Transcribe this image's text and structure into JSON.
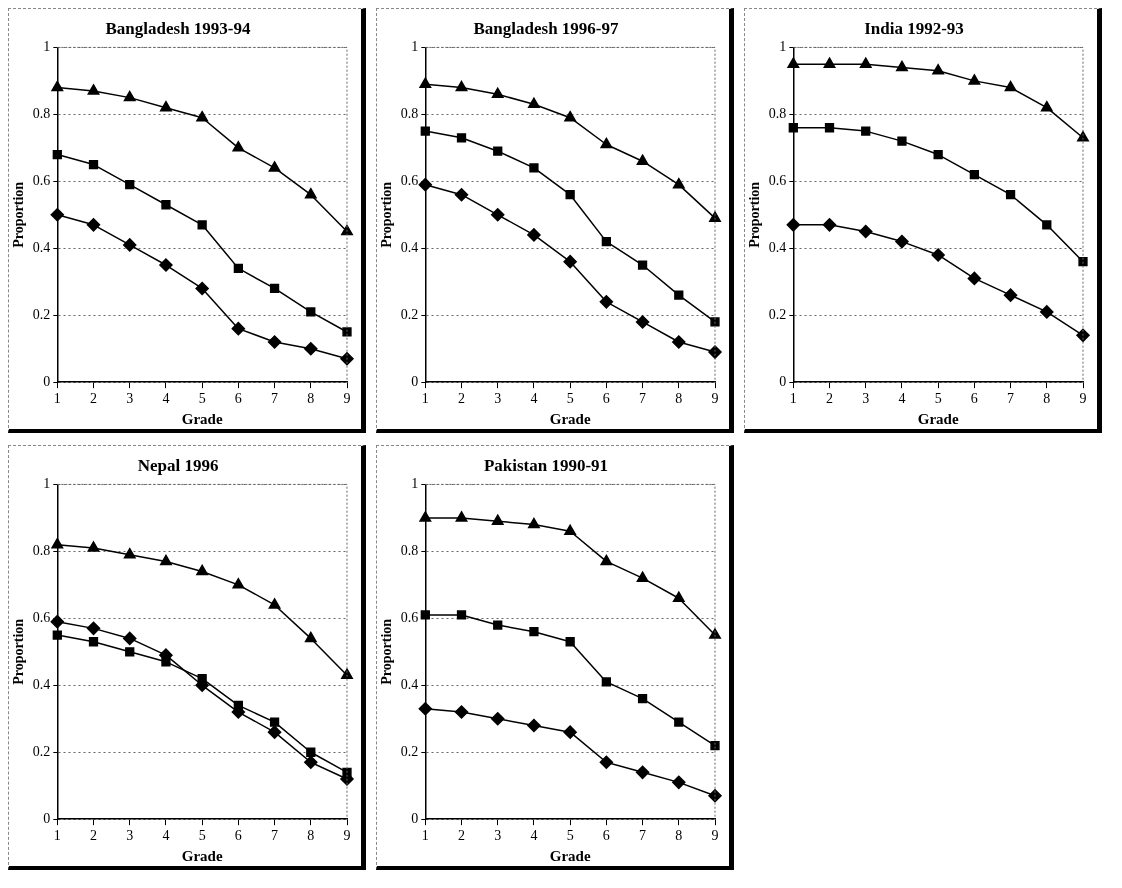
{
  "chart_data": [
    {
      "type": "line",
      "title": "Bangladesh 1993-94",
      "xlabel": "Grade",
      "ylabel": "Proportion",
      "x": [
        1,
        2,
        3,
        4,
        5,
        6,
        7,
        8,
        9
      ],
      "xlim": [
        1,
        9
      ],
      "xticks": [
        1,
        2,
        3,
        4,
        5,
        6,
        7,
        8,
        9
      ],
      "ylim": [
        0,
        1
      ],
      "yticks": [
        0,
        0.2,
        0.4,
        0.6,
        0.8,
        1
      ],
      "grid": "y",
      "series": [
        {
          "color": "#000000",
          "marker": "triangle",
          "values": [
            0.88,
            0.87,
            0.85,
            0.82,
            0.79,
            0.7,
            0.64,
            0.56,
            0.45
          ]
        },
        {
          "color": "#000000",
          "marker": "square",
          "values": [
            0.68,
            0.65,
            0.59,
            0.53,
            0.47,
            0.34,
            0.28,
            0.21,
            0.15
          ]
        },
        {
          "color": "#000000",
          "marker": "diamond",
          "values": [
            0.5,
            0.47,
            0.41,
            0.35,
            0.28,
            0.16,
            0.12,
            0.1,
            0.07
          ]
        }
      ]
    },
    {
      "type": "line",
      "title": "Bangladesh 1996-97",
      "xlabel": "Grade",
      "ylabel": "Proportion",
      "x": [
        1,
        2,
        3,
        4,
        5,
        6,
        7,
        8,
        9
      ],
      "xlim": [
        1,
        9
      ],
      "xticks": [
        1,
        2,
        3,
        4,
        5,
        6,
        7,
        8,
        9
      ],
      "ylim": [
        0,
        1
      ],
      "yticks": [
        0,
        0.2,
        0.4,
        0.6,
        0.8,
        1
      ],
      "grid": "y",
      "series": [
        {
          "color": "#000000",
          "marker": "triangle",
          "values": [
            0.89,
            0.88,
            0.86,
            0.83,
            0.79,
            0.71,
            0.66,
            0.59,
            0.49
          ]
        },
        {
          "color": "#000000",
          "marker": "square",
          "values": [
            0.75,
            0.73,
            0.69,
            0.64,
            0.56,
            0.42,
            0.35,
            0.26,
            0.18
          ]
        },
        {
          "color": "#000000",
          "marker": "diamond",
          "values": [
            0.59,
            0.56,
            0.5,
            0.44,
            0.36,
            0.24,
            0.18,
            0.12,
            0.09
          ]
        }
      ]
    },
    {
      "type": "line",
      "title": "India 1992-93",
      "xlabel": "Grade",
      "ylabel": "Proportion",
      "x": [
        1,
        2,
        3,
        4,
        5,
        6,
        7,
        8,
        9
      ],
      "xlim": [
        1,
        9
      ],
      "xticks": [
        1,
        2,
        3,
        4,
        5,
        6,
        7,
        8,
        9
      ],
      "ylim": [
        0,
        1
      ],
      "yticks": [
        0,
        0.2,
        0.4,
        0.6,
        0.8,
        1
      ],
      "grid": "y",
      "series": [
        {
          "color": "#000000",
          "marker": "triangle",
          "values": [
            0.95,
            0.95,
            0.95,
            0.94,
            0.93,
            0.9,
            0.88,
            0.82,
            0.73
          ]
        },
        {
          "color": "#000000",
          "marker": "square",
          "values": [
            0.76,
            0.76,
            0.75,
            0.72,
            0.68,
            0.62,
            0.56,
            0.47,
            0.36
          ]
        },
        {
          "color": "#000000",
          "marker": "diamond",
          "values": [
            0.47,
            0.47,
            0.45,
            0.42,
            0.38,
            0.31,
            0.26,
            0.21,
            0.14
          ]
        }
      ]
    },
    {
      "type": "line",
      "title": "Nepal 1996",
      "xlabel": "Grade",
      "ylabel": "Proportion",
      "x": [
        1,
        2,
        3,
        4,
        5,
        6,
        7,
        8,
        9
      ],
      "xlim": [
        1,
        9
      ],
      "xticks": [
        1,
        2,
        3,
        4,
        5,
        6,
        7,
        8,
        9
      ],
      "ylim": [
        0,
        1
      ],
      "yticks": [
        0,
        0.2,
        0.4,
        0.6,
        0.8,
        1
      ],
      "grid": "y",
      "series": [
        {
          "color": "#000000",
          "marker": "triangle",
          "values": [
            0.82,
            0.81,
            0.79,
            0.77,
            0.74,
            0.7,
            0.64,
            0.54,
            0.43
          ]
        },
        {
          "color": "#000000",
          "marker": "square",
          "values": [
            0.55,
            0.53,
            0.5,
            0.47,
            0.42,
            0.34,
            0.29,
            0.2,
            0.14
          ]
        },
        {
          "color": "#000000",
          "marker": "diamond",
          "values": [
            0.59,
            0.57,
            0.54,
            0.49,
            0.4,
            0.32,
            0.26,
            0.17,
            0.12
          ]
        }
      ]
    },
    {
      "type": "line",
      "title": "Pakistan 1990-91",
      "xlabel": "Grade",
      "ylabel": "Proportion",
      "x": [
        1,
        2,
        3,
        4,
        5,
        6,
        7,
        8,
        9
      ],
      "xlim": [
        1,
        9
      ],
      "xticks": [
        1,
        2,
        3,
        4,
        5,
        6,
        7,
        8,
        9
      ],
      "ylim": [
        0,
        1
      ],
      "yticks": [
        0,
        0.2,
        0.4,
        0.6,
        0.8,
        1
      ],
      "grid": "y",
      "series": [
        {
          "color": "#000000",
          "marker": "triangle",
          "values": [
            0.9,
            0.9,
            0.89,
            0.88,
            0.86,
            0.77,
            0.72,
            0.66,
            0.55
          ]
        },
        {
          "color": "#000000",
          "marker": "square",
          "values": [
            0.61,
            0.61,
            0.58,
            0.56,
            0.53,
            0.41,
            0.36,
            0.29,
            0.22
          ]
        },
        {
          "color": "#000000",
          "marker": "diamond",
          "values": [
            0.33,
            0.32,
            0.3,
            0.28,
            0.26,
            0.17,
            0.14,
            0.11,
            0.07
          ]
        }
      ]
    }
  ]
}
